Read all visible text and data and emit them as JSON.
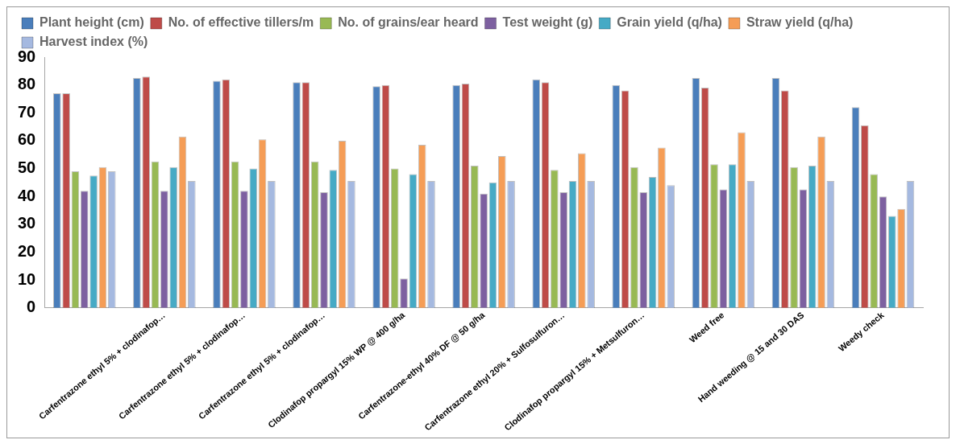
{
  "chart_data": {
    "type": "bar",
    "categories": [
      null,
      "Carfentrazone ethyl 5% + clodinafop…",
      "Carfentrazone ethyl 5% + clodinafop…",
      "Carfentrazone ethyl 5% + clodinafop…",
      "Clodinafop propargyl 15% WP @ 400 g/ha",
      "Carfentrazone-ethyl 40% DF @ 50 g/ha",
      "Carfentrazone ethyl 20% + Sulfosulfuron…",
      "Clodinafop propargyl 15% + Metsulfuron…",
      "Weed free",
      "Hand weeding @ 15 and 30 DAS",
      "Weedy check"
    ],
    "series": [
      {
        "name": "Plant height (cm)",
        "color": "#4a7ebb",
        "values": [
          77,
          82.5,
          81.5,
          81,
          79.5,
          80,
          82,
          80,
          82.5,
          82.5,
          72
        ]
      },
      {
        "name": "No. of effective tillers/m",
        "color": "#be4b48",
        "values": [
          77,
          83,
          82,
          81,
          80,
          80.5,
          81,
          78,
          79,
          78,
          65.5
        ]
      },
      {
        "name": "No. of grains/ear heard",
        "color": "#98b954",
        "values": [
          49,
          52.5,
          52.5,
          52.5,
          50,
          51,
          49.5,
          50.5,
          51.5,
          50.5,
          48
        ]
      },
      {
        "name": "Test weight (g)",
        "color": "#7d60a0",
        "values": [
          42,
          42,
          42,
          41.5,
          10.5,
          41,
          41.5,
          41.5,
          42.5,
          42.5,
          40
        ]
      },
      {
        "name": "Grain yield (q/ha)",
        "color": "#46aac5",
        "values": [
          47.5,
          50.5,
          50,
          49.5,
          48,
          45,
          45.5,
          47,
          51.5,
          51,
          33
        ]
      },
      {
        "name": "Straw yield (q/ha)",
        "color": "#f59d56",
        "values": [
          50.5,
          61.5,
          60.5,
          60,
          58.5,
          54.5,
          55.5,
          57.5,
          63,
          61.5,
          35.5
        ]
      },
      {
        "name": "Harvest index (%)",
        "color": "#a5b9e0",
        "values": [
          49,
          45.5,
          45.5,
          45.5,
          45.5,
          45.5,
          45.5,
          44,
          45.5,
          45.5,
          45.5
        ]
      }
    ],
    "ylim": [
      0,
      90
    ],
    "yticks": [
      0,
      10,
      20,
      30,
      40,
      50,
      60,
      70,
      80,
      90
    ],
    "grid": false,
    "legend": "top"
  }
}
